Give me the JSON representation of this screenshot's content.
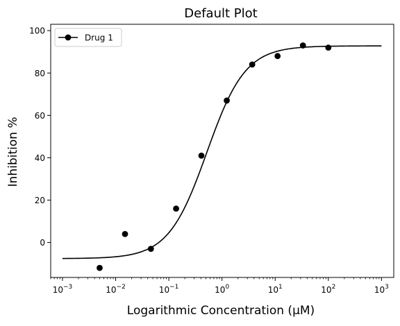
{
  "chart_data": {
    "type": "scatter",
    "title": "Default Plot",
    "xlabel": "Logarithmic Concentration (µM)",
    "ylabel": "Inhibition %",
    "xscale": "log",
    "xlim": [
      0.0006,
      1700
    ],
    "ylim": [
      -16.5,
      103
    ],
    "xticks": [
      0.001,
      0.01,
      0.1,
      1,
      10,
      100,
      1000
    ],
    "xtick_labels": [
      {
        "base": "10",
        "exp": "−3"
      },
      {
        "base": "10",
        "exp": "−2"
      },
      {
        "base": "10",
        "exp": "−1"
      },
      {
        "base": "10",
        "exp": "0"
      },
      {
        "base": "10",
        "exp": "1"
      },
      {
        "base": "10",
        "exp": "2"
      },
      {
        "base": "10",
        "exp": "3"
      }
    ],
    "yticks": [
      0,
      20,
      40,
      60,
      80,
      100
    ],
    "ytick_labels": [
      "0",
      "20",
      "40",
      "60",
      "80",
      "100"
    ],
    "grid": false,
    "legend": "top-left",
    "series": [
      {
        "name": "Drug 1",
        "color": "#000000",
        "marker": "circle",
        "points": [
          {
            "x": 0.005,
            "y": -12
          },
          {
            "x": 0.015,
            "y": 4
          },
          {
            "x": 0.046,
            "y": -3
          },
          {
            "x": 0.137,
            "y": 16
          },
          {
            "x": 0.41,
            "y": 41
          },
          {
            "x": 1.23,
            "y": 67
          },
          {
            "x": 3.7,
            "y": 84
          },
          {
            "x": 11.1,
            "y": 88
          },
          {
            "x": 33.3,
            "y": 93
          },
          {
            "x": 100,
            "y": 92
          }
        ],
        "fit": {
          "model": "4PL",
          "bottom": -7.6,
          "top": 92.8,
          "ec50": 0.52,
          "hill": 1.2,
          "x_range": [
            0.001,
            1000
          ]
        }
      }
    ]
  }
}
